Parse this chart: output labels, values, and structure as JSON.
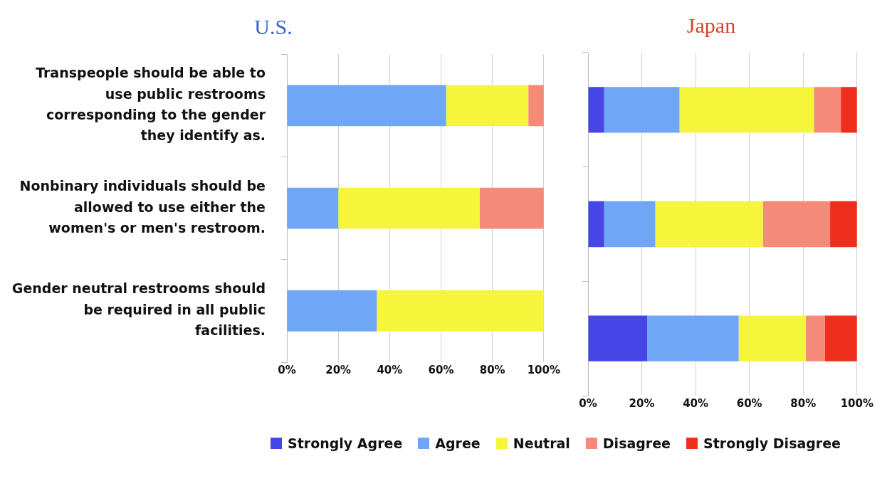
{
  "chart_data": [
    {
      "type": "bar",
      "orientation": "horizontal",
      "stacked": true,
      "title": "U.S.",
      "categories": [
        "Transpeople should be able to use public restrooms corresponding to the gender they identify as.",
        "Nonbinary individuals should be allowed to use either the women's or men's restroom.",
        "Gender neutral restrooms should be required in all public facilities."
      ],
      "series": [
        {
          "color": "#6fa6f5",
          "values": [
            62,
            20,
            35
          ]
        },
        {
          "color": "#f5f53c",
          "values": [
            32,
            55,
            65
          ]
        },
        {
          "color": "#f58a78",
          "values": [
            6,
            25,
            0
          ]
        }
      ],
      "xlim": [
        0,
        100
      ],
      "xticks": [
        {
          "value": 0,
          "label": "0%"
        },
        {
          "value": 20,
          "label": "20%"
        },
        {
          "value": 40,
          "label": "40%"
        },
        {
          "value": 60,
          "label": "60%"
        },
        {
          "value": 80,
          "label": "80%"
        },
        {
          "value": 100,
          "label": "100%"
        }
      ],
      "grid": "x"
    },
    {
      "type": "bar",
      "orientation": "horizontal",
      "stacked": true,
      "title": "Japan",
      "categories": [
        null,
        null,
        null
      ],
      "series": [
        {
          "name": "Strongly Agree",
          "color": "#4646e6",
          "values": [
            6,
            6,
            22
          ]
        },
        {
          "name": "Agree",
          "color": "#6fa6f5",
          "values": [
            28,
            19,
            34
          ]
        },
        {
          "name": "Neutral",
          "color": "#f5f53c",
          "values": [
            50,
            40,
            25
          ]
        },
        {
          "name": "Disagree",
          "color": "#f58a78",
          "values": [
            10,
            25,
            7
          ]
        },
        {
          "name": "Strongly Disagree",
          "color": "#f02e1e",
          "values": [
            6,
            10,
            12
          ]
        }
      ],
      "xlim": [
        0,
        100
      ],
      "xticks": [
        {
          "value": 0,
          "label": "0%"
        },
        {
          "value": 20,
          "label": "20%"
        },
        {
          "value": 40,
          "label": "40%"
        },
        {
          "value": 60,
          "label": "60%"
        },
        {
          "value": 80,
          "label": "80%"
        },
        {
          "value": 100,
          "label": "100%"
        }
      ],
      "grid": "x",
      "legend": "bottom",
      "tick_labels": "x"
    }
  ]
}
